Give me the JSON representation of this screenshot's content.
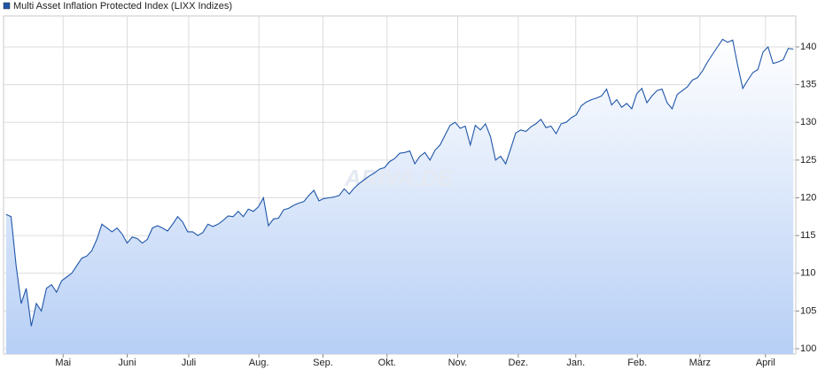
{
  "chart_data": {
    "type": "line",
    "watermark": "ARIVA.DE",
    "series": [
      {
        "name": "Multi Asset Inflation Protected Index (LIXX Indizes)",
        "color": "#1f56a8",
        "values": [
          117.8,
          117.5,
          111,
          106,
          108,
          103,
          106,
          105,
          108,
          108.5,
          107.5,
          109,
          109.5,
          110,
          111,
          112,
          112.3,
          113,
          114.5,
          116.5,
          116,
          115.5,
          116,
          115.2,
          114,
          114.8,
          114.6,
          114,
          114.5,
          116,
          116.3,
          116,
          115.6,
          116.5,
          117.5,
          116.8,
          115.5,
          115.5,
          115,
          115.4,
          116.5,
          116.2,
          116.5,
          117,
          117.6,
          117.5,
          118.2,
          117.5,
          118.5,
          118.2,
          118.8,
          120,
          116.3,
          117.2,
          117.3,
          118.4,
          118.6,
          119,
          119.3,
          119.5,
          120.3,
          121,
          119.6,
          119.9,
          120,
          120.1,
          120.3,
          121.2,
          120.5,
          121.3,
          121.9,
          122.4,
          122.9,
          123.3,
          123.8,
          124,
          124.8,
          125.2,
          125.9,
          126,
          126.2,
          124.5,
          125.5,
          126,
          125,
          126.3,
          127,
          128.3,
          129.6,
          130,
          129.2,
          129.5,
          127,
          129.6,
          129,
          129.8,
          128.1,
          125,
          125.5,
          124.5,
          126.5,
          128.6,
          129,
          128.8,
          129.4,
          129.8,
          130.4,
          129.3,
          129.5,
          128.5,
          129.8,
          130,
          130.6,
          131,
          132.2,
          132.7,
          133,
          133.2,
          133.5,
          134.4,
          132.3,
          133,
          132,
          132.5,
          131.8,
          133.8,
          134.5,
          132.6,
          133.5,
          134.2,
          134.4,
          132.6,
          131.8,
          133.7,
          134.2,
          134.7,
          135.6,
          135.9,
          136.8,
          138,
          139,
          140,
          141,
          140.6,
          140.9,
          137.5,
          134.5,
          135.6,
          136.6,
          137,
          139.3,
          140,
          137.8,
          138,
          138.3,
          139.8,
          139.7
        ]
      }
    ],
    "xlim": [
      0,
      157
    ],
    "xticks": [
      {
        "value": 11.8,
        "label": "Mai"
      },
      {
        "value": 24.5,
        "label": "Juni"
      },
      {
        "value": 36.7,
        "label": "Juli"
      },
      {
        "value": 50.6,
        "label": "Aug."
      },
      {
        "value": 63.3,
        "label": "Sep."
      },
      {
        "value": 76,
        "label": "Okt."
      },
      {
        "value": 90,
        "label": "Nov."
      },
      {
        "value": 102,
        "label": "Dez."
      },
      {
        "value": 113.4,
        "label": "Jan."
      },
      {
        "value": 125.6,
        "label": "Feb."
      },
      {
        "value": 138,
        "label": "März"
      },
      {
        "value": 151,
        "label": "April"
      }
    ],
    "ylim": [
      99.3,
      144.1
    ],
    "yticks": [
      100,
      105,
      110,
      115,
      120,
      125,
      130,
      135,
      140
    ],
    "grid": true
  }
}
